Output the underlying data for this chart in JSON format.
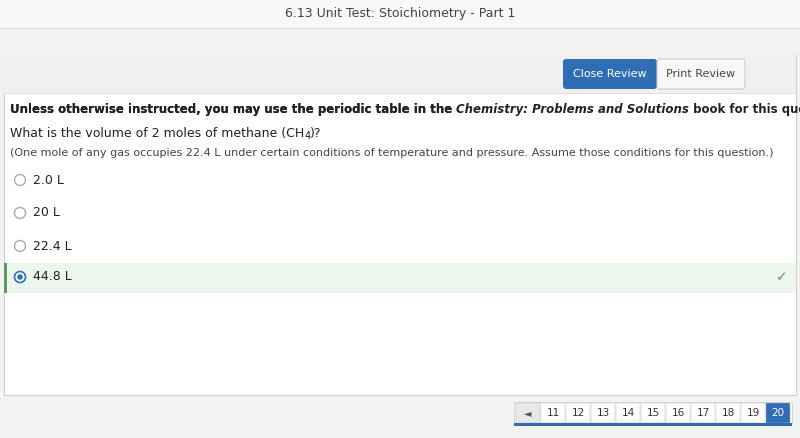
{
  "page_title": "6.13 Unit Test: Stoichiometry - Part 1",
  "bg_color": "#f2f2f2",
  "card_bg": "#ffffff",
  "btn_close_bg": "#2f6eb5",
  "btn_close_text": "Close Review",
  "btn_print_text": "Print Review",
  "btn_print_bg": "#f8f8f8",
  "btn_print_border": "#cccccc",
  "instruction_normal1": "Unless otherwise instructed, you may use the periodic table in the ",
  "instruction_bold_italic": "Chemistry: Problems and Solutions",
  "instruction_normal2": " book for this question.",
  "question_main": "What is the volume of 2 moles of methane (CH",
  "question_sub": "4",
  "question_tail": ")?",
  "hint_text": "(One mole of any gas occupies 22.4 L under certain conditions of temperature and pressure. Assume those conditions for this question.)",
  "options": [
    "2.0 L",
    "20 L",
    "22.4 L",
    "44.8 L"
  ],
  "correct_index": 3,
  "correct_bg": "#edf6ed",
  "correct_border_color": "#5a9a5a",
  "correct_check_color": "#5a9a5a",
  "radio_empty_color": "#aaaaaa",
  "radio_filled_color": "#3070c0",
  "page_nums": [
    "11",
    "12",
    "13",
    "14",
    "15",
    "16",
    "17",
    "18",
    "19",
    "20"
  ],
  "page_current": "20",
  "page_current_bg": "#2f6eb5",
  "nav_underline_color": "#2f6eb5",
  "title_color": "#444444",
  "text_color": "#222222",
  "hint_color": "#444444",
  "option_text_color": "#222222",
  "card_border_color": "#d0d0d0",
  "top_bar_bg": "#f8f8f8",
  "top_bar_border": "#dddddd"
}
